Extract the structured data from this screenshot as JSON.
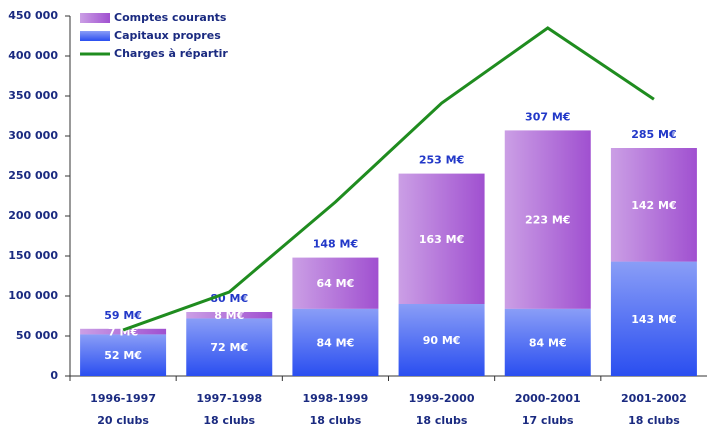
{
  "chart_data": {
    "type": "stacked_bar_line",
    "categories": [
      "1996-1997",
      "1997-1998",
      "1998-1999",
      "1999-2000",
      "2000-2001",
      "2001-2002"
    ],
    "clubs": [
      "20 clubs",
      "18 clubs",
      "18 clubs",
      "18 clubs",
      "17 clubs",
      "18 clubs"
    ],
    "series": [
      {
        "name": "Capitaux propres",
        "color": "#2a4ef0",
        "type": "bar",
        "values": [
          52000,
          72000,
          84000,
          90000,
          84000,
          143000
        ],
        "value_labels": [
          "52 M€",
          "72 M€",
          "84 M€",
          "90 M€",
          "84 M€",
          "143 M€"
        ]
      },
      {
        "name": "Comptes courants",
        "color": "#a050d0",
        "type": "bar",
        "values": [
          7000,
          8000,
          64000,
          163000,
          223000,
          142000
        ],
        "value_labels": [
          "7 M€",
          "8 M€",
          "64 M€",
          "163 M€",
          "223 M€",
          "142 M€"
        ]
      },
      {
        "name": "Charges à répartir",
        "color": "#1f8c1f",
        "type": "line",
        "values": [
          57500,
          105000,
          217500,
          341000,
          435000,
          346000
        ]
      }
    ],
    "totals": {
      "values": [
        59000,
        80000,
        148000,
        253000,
        307000,
        285000
      ],
      "value_labels": [
        "59 M€",
        "80 M€",
        "148 M€",
        "253 M€",
        "307 M€",
        "285 M€"
      ]
    },
    "ylim": [
      0,
      450000
    ],
    "yticks": [
      {
        "value": 0,
        "label": "0"
      },
      {
        "value": 50000,
        "label": "50 000"
      },
      {
        "value": 100000,
        "label": "100 000"
      },
      {
        "value": 150000,
        "label": "150 000"
      },
      {
        "value": 200000,
        "label": "200 000"
      },
      {
        "value": 250000,
        "label": "250 000"
      },
      {
        "value": 300000,
        "label": "300 000"
      },
      {
        "value": 350000,
        "label": "350 000"
      },
      {
        "value": 400000,
        "label": "400 000"
      },
      {
        "value": 450000,
        "label": "450 000"
      }
    ],
    "legend": "upper left"
  }
}
